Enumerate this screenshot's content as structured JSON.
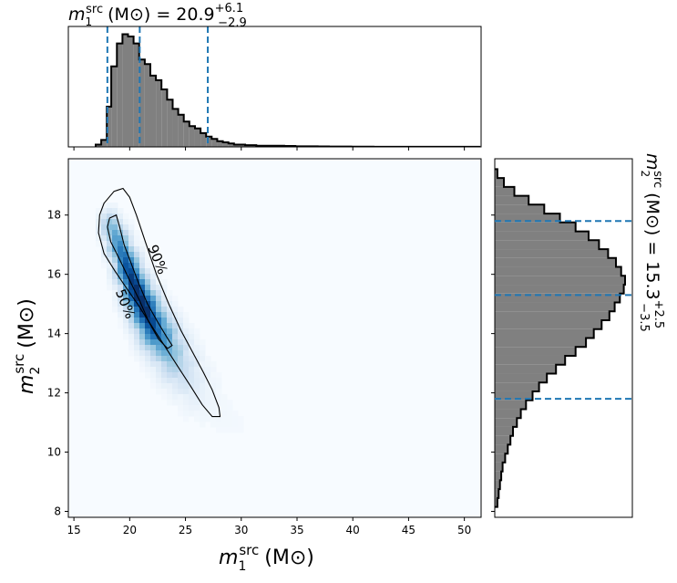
{
  "chart_data": [
    {
      "type": "histogram",
      "panel": "top-marginal",
      "variable": "m1_src",
      "title": {
        "symbol": "m",
        "sub": "1",
        "sup": "src",
        "unit": "(M⊙) = 20.9",
        "plus": "+6.1",
        "minus": "−2.9"
      },
      "median": 20.9,
      "upper_err": 6.1,
      "lower_err": 2.9,
      "quantile_lines": [
        18.0,
        20.9,
        27.0
      ],
      "xlim": [
        14.5,
        51.5
      ],
      "bins": [
        [
          17.2,
          0.02
        ],
        [
          17.7,
          0.06
        ],
        [
          18.2,
          0.35
        ],
        [
          18.6,
          0.7
        ],
        [
          19.1,
          0.9
        ],
        [
          19.6,
          0.98
        ],
        [
          20.1,
          0.96
        ],
        [
          20.6,
          0.9
        ],
        [
          21.1,
          0.76
        ],
        [
          21.6,
          0.72
        ],
        [
          22.1,
          0.62
        ],
        [
          22.6,
          0.58
        ],
        [
          23.1,
          0.5
        ],
        [
          23.6,
          0.41
        ],
        [
          24.1,
          0.33
        ],
        [
          24.6,
          0.28
        ],
        [
          25.1,
          0.22
        ],
        [
          25.6,
          0.18
        ],
        [
          26.1,
          0.16
        ],
        [
          26.6,
          0.12
        ],
        [
          27.1,
          0.09
        ],
        [
          27.6,
          0.07
        ],
        [
          28.1,
          0.05
        ],
        [
          28.6,
          0.04
        ],
        [
          29.1,
          0.03
        ],
        [
          29.6,
          0.02
        ],
        [
          30.1,
          0.02
        ],
        [
          30.6,
          0.015
        ],
        [
          31.1,
          0.015
        ],
        [
          31.6,
          0.01
        ],
        [
          32.1,
          0.01
        ],
        [
          33.1,
          0.01
        ],
        [
          34.1,
          0.008
        ],
        [
          35.1,
          0.005
        ],
        [
          36.1,
          0.005
        ],
        [
          37.1,
          0.004
        ],
        [
          38.1,
          0.003
        ],
        [
          40.1,
          0.002
        ],
        [
          42.1,
          0.001
        ],
        [
          45.1,
          0.001
        ],
        [
          48.1,
          0.001
        ],
        [
          51.1,
          0.001
        ]
      ]
    },
    {
      "type": "heatmap",
      "panel": "joint",
      "x_variable": "m1_src",
      "y_variable": "m2_src",
      "xlabel": {
        "symbol": "m",
        "sub": "1",
        "sup": "src",
        "unit": "(M⊙)"
      },
      "ylabel": {
        "symbol": "m",
        "sub": "2",
        "sup": "src",
        "unit": "(M⊙)"
      },
      "xlim": [
        14.5,
        51.5
      ],
      "ylim": [
        7.8,
        19.9
      ],
      "xticks": [
        15,
        20,
        25,
        30,
        35,
        40,
        45,
        50
      ],
      "yticks": [
        8,
        10,
        12,
        14,
        16,
        18
      ],
      "colormap": "Blues",
      "density_ridge": [
        [
          18.3,
          17.6
        ],
        [
          19.0,
          17.0
        ],
        [
          19.8,
          16.2
        ],
        [
          20.6,
          15.4
        ],
        [
          21.4,
          14.8
        ],
        [
          22.2,
          14.2
        ],
        [
          23.0,
          13.8
        ],
        [
          24.0,
          13.2
        ],
        [
          25.0,
          12.7
        ],
        [
          26.0,
          12.2
        ],
        [
          27.0,
          11.8
        ],
        [
          28.0,
          11.4
        ],
        [
          30.0,
          10.9
        ],
        [
          33.0,
          10.2
        ],
        [
          36.0,
          9.6
        ],
        [
          40.0,
          8.9
        ],
        [
          44.0,
          8.3
        ]
      ],
      "contours": [
        {
          "label": "50%",
          "label_at": [
            19.6,
            15.0
          ],
          "label_angle": 68,
          "path": [
            [
              18.2,
              17.9
            ],
            [
              18.8,
              18.0
            ],
            [
              19.1,
              17.6
            ],
            [
              19.5,
              17.0
            ],
            [
              20.1,
              16.4
            ],
            [
              20.8,
              15.7
            ],
            [
              21.6,
              15.0
            ],
            [
              22.5,
              14.4
            ],
            [
              23.3,
              13.9
            ],
            [
              23.8,
              13.6
            ],
            [
              23.4,
              13.5
            ],
            [
              22.6,
              13.8
            ],
            [
              21.7,
              14.4
            ],
            [
              20.9,
              15.1
            ],
            [
              20.0,
              15.8
            ],
            [
              19.1,
              16.5
            ],
            [
              18.3,
              17.1
            ],
            [
              18.0,
              17.6
            ]
          ]
        },
        {
          "label": "90%",
          "label_at": [
            22.5,
            16.5
          ],
          "label_angle": 68,
          "path": [
            [
              17.7,
              18.4
            ],
            [
              18.6,
              18.8
            ],
            [
              19.4,
              18.9
            ],
            [
              20.0,
              18.6
            ],
            [
              20.6,
              18.0
            ],
            [
              21.4,
              17.1
            ],
            [
              22.4,
              16.0
            ],
            [
              23.5,
              15.0
            ],
            [
              24.6,
              14.1
            ],
            [
              25.6,
              13.4
            ],
            [
              26.6,
              12.7
            ],
            [
              27.4,
              12.1
            ],
            [
              28.0,
              11.5
            ],
            [
              28.1,
              11.2
            ],
            [
              27.4,
              11.2
            ],
            [
              26.5,
              11.6
            ],
            [
              25.5,
              12.2
            ],
            [
              24.3,
              12.9
            ],
            [
              23.1,
              13.6
            ],
            [
              21.9,
              14.3
            ],
            [
              20.7,
              15.0
            ],
            [
              19.6,
              15.6
            ],
            [
              18.7,
              16.1
            ],
            [
              17.7,
              16.7
            ],
            [
              17.2,
              17.4
            ],
            [
              17.3,
              18.0
            ]
          ]
        }
      ]
    },
    {
      "type": "histogram",
      "panel": "right-marginal",
      "orientation": "horizontal",
      "variable": "m2_src",
      "title": {
        "symbol": "m",
        "sub": "2",
        "sup": "src",
        "unit": "(M⊙) = 15.3",
        "plus": "+2.5",
        "minus": "−3.5"
      },
      "median": 15.3,
      "upper_err": 2.5,
      "lower_err": 3.5,
      "quantile_lines": [
        11.8,
        15.3,
        17.8
      ],
      "ylim": [
        7.8,
        19.9
      ],
      "bins": [
        [
          8.3,
          0.02
        ],
        [
          8.6,
          0.03
        ],
        [
          8.9,
          0.04
        ],
        [
          9.2,
          0.05
        ],
        [
          9.5,
          0.06
        ],
        [
          9.8,
          0.08
        ],
        [
          10.1,
          0.1
        ],
        [
          10.4,
          0.12
        ],
        [
          10.7,
          0.14
        ],
        [
          11.0,
          0.17
        ],
        [
          11.3,
          0.2
        ],
        [
          11.6,
          0.24
        ],
        [
          11.9,
          0.29
        ],
        [
          12.2,
          0.34
        ],
        [
          12.5,
          0.4
        ],
        [
          12.8,
          0.47
        ],
        [
          13.1,
          0.54
        ],
        [
          13.4,
          0.62
        ],
        [
          13.7,
          0.7
        ],
        [
          14.0,
          0.76
        ],
        [
          14.3,
          0.82
        ],
        [
          14.6,
          0.88
        ],
        [
          14.9,
          0.92
        ],
        [
          15.2,
          0.96
        ],
        [
          15.5,
          0.99
        ],
        [
          15.8,
          1.0
        ],
        [
          16.1,
          0.97
        ],
        [
          16.4,
          0.93
        ],
        [
          16.7,
          0.87
        ],
        [
          17.0,
          0.8
        ],
        [
          17.3,
          0.72
        ],
        [
          17.6,
          0.62
        ],
        [
          17.9,
          0.5
        ],
        [
          18.2,
          0.38
        ],
        [
          18.5,
          0.26
        ],
        [
          18.8,
          0.15
        ],
        [
          19.1,
          0.07
        ],
        [
          19.4,
          0.02
        ]
      ]
    }
  ]
}
